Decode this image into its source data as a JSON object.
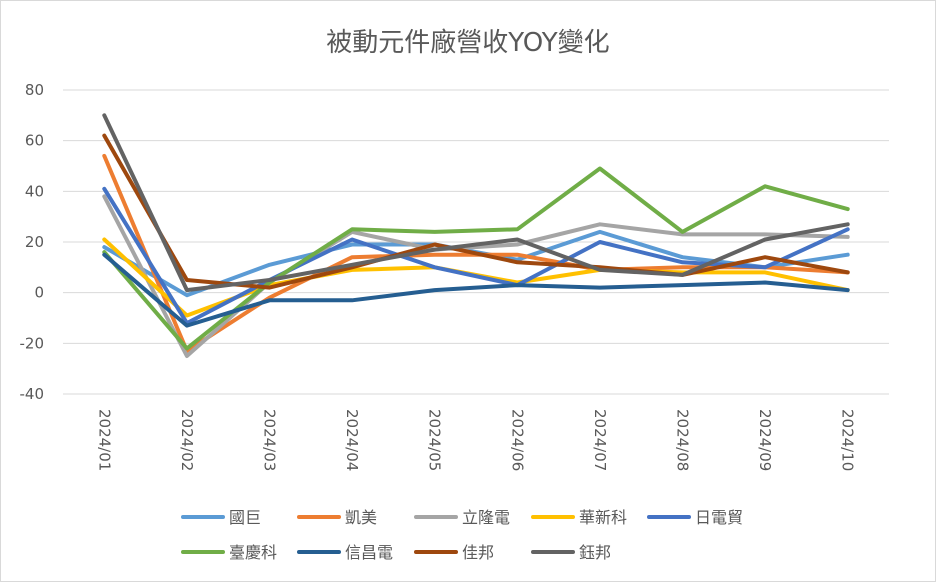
{
  "chart_data": {
    "type": "line",
    "title": "被動元件廠營收YOY變化",
    "xlabel": "",
    "ylabel": "",
    "ylim": [
      -40,
      80
    ],
    "yticks": [
      80,
      60,
      40,
      20,
      0,
      -20,
      -40
    ],
    "grid": true,
    "legend_position": "bottom",
    "categories": [
      "2024/01",
      "2024/02",
      "2024/03",
      "2024/04",
      "2024/05",
      "2024/06",
      "2024/07",
      "2024/08",
      "2024/09",
      "2024/10"
    ],
    "series": [
      {
        "name": "國巨",
        "color": "#5b9bd5",
        "values": [
          18,
          -1,
          11,
          19,
          19,
          13,
          24,
          14,
          10,
          15
        ]
      },
      {
        "name": "凱美",
        "color": "#ed7d31",
        "values": [
          54,
          -23,
          -2,
          14,
          15,
          15,
          9,
          10,
          10,
          8
        ]
      },
      {
        "name": "立隆電",
        "color": "#a5a5a5",
        "values": [
          38,
          -25,
          4,
          24,
          17,
          19,
          27,
          23,
          23,
          22
        ]
      },
      {
        "name": "華新科",
        "color": "#ffc000",
        "values": [
          21,
          -9,
          3,
          9,
          10,
          4,
          9,
          8,
          8,
          1
        ]
      },
      {
        "name": "日電貿",
        "color": "#4472c4",
        "values": [
          41,
          -12,
          5,
          21,
          10,
          3,
          20,
          12,
          10,
          25
        ]
      },
      {
        "name": "臺慶科",
        "color": "#70ad47",
        "values": [
          16,
          -22,
          4,
          25,
          24,
          25,
          49,
          24,
          42,
          33
        ]
      },
      {
        "name": "信昌電",
        "color": "#255e91",
        "values": [
          15,
          -13,
          -3,
          -3,
          1,
          3,
          2,
          3,
          4,
          1
        ]
      },
      {
        "name": "佳邦",
        "color": "#9e480e",
        "values": [
          62,
          5,
          2,
          10,
          19,
          12,
          10,
          7,
          14,
          8
        ]
      },
      {
        "name": "鈺邦",
        "color": "#636363",
        "values": [
          70,
          1,
          5,
          11,
          17,
          21,
          9,
          7,
          21,
          27
        ]
      }
    ]
  }
}
